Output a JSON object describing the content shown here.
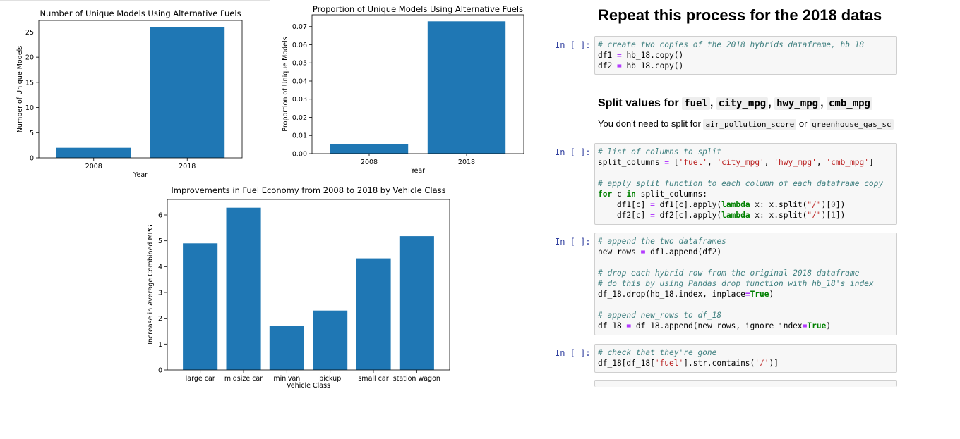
{
  "chart_data": [
    {
      "type": "bar",
      "title": "Number of Unique Models Using Alternative Fuels",
      "xlabel": "Year",
      "ylabel": "Number of Unique Models",
      "categories": [
        "2008",
        "2018"
      ],
      "values": [
        2,
        26
      ],
      "ylim": [
        0,
        27.3
      ],
      "yticks": [
        0,
        5,
        10,
        15,
        20,
        25
      ],
      "ytick_labels": [
        "0",
        "5",
        "10",
        "15",
        "20",
        "25"
      ],
      "bar_color": "#1f77b4",
      "grid": false
    },
    {
      "type": "bar",
      "title": "Proportion of Unique Models Using Alternative Fuels",
      "xlabel": "Year",
      "ylabel": "Proportion of Unique Models",
      "categories": [
        "2008",
        "2018"
      ],
      "values": [
        0.0054,
        0.0729
      ],
      "ylim": [
        0,
        0.0765
      ],
      "yticks": [
        0,
        0.01,
        0.02,
        0.03,
        0.04,
        0.05,
        0.06,
        0.07
      ],
      "ytick_labels": [
        "0.00",
        "0.01",
        "0.02",
        "0.03",
        "0.04",
        "0.05",
        "0.06",
        "0.07"
      ],
      "bar_color": "#1f77b4",
      "grid": false
    },
    {
      "type": "bar",
      "title": "Improvements in Fuel Economy from 2008 to 2018 by Vehicle Class",
      "xlabel": "Vehicle Class",
      "ylabel": "Increase in Average Combined MPG",
      "categories": [
        "large car",
        "midsize car",
        "minivan",
        "pickup",
        "small car",
        "station wagon"
      ],
      "values": [
        4.9,
        6.28,
        1.7,
        2.3,
        4.32,
        5.18
      ],
      "ylim": [
        0,
        6.6
      ],
      "yticks": [
        0,
        1,
        2,
        3,
        4,
        5,
        6
      ],
      "ytick_labels": [
        "0",
        "1",
        "2",
        "3",
        "4",
        "5",
        "6"
      ],
      "bar_color": "#1f77b4",
      "grid": false
    }
  ],
  "notebook": {
    "heading": "Repeat this process for the 2018 datas",
    "subheading": {
      "prefix": "Split values for ",
      "codes": [
        "fuel",
        "city_mpg",
        "hwy_mpg",
        "cmb_mpg"
      ],
      "sep": ", "
    },
    "note": {
      "prefix": "You don't need to split for ",
      "code1": "air_pollution_score",
      "middle": " or ",
      "code2": "greenhouse_gas_sc"
    },
    "cells": [
      {
        "prompt": "In [ ]:",
        "lines": [
          [
            [
              "c",
              "# create two copies of the 2018 hybrids dataframe, hb_18"
            ]
          ],
          [
            [
              "t",
              "df1 "
            ],
            [
              "o",
              "="
            ],
            [
              "t",
              " hb_18.copy()"
            ]
          ],
          [
            [
              "t",
              "df2 "
            ],
            [
              "o",
              "="
            ],
            [
              "t",
              " hb_18.copy()"
            ]
          ]
        ]
      },
      {
        "prompt": "In [ ]:",
        "lines": [
          [
            [
              "c",
              "# list of columns to split"
            ]
          ],
          [
            [
              "t",
              "split_columns "
            ],
            [
              "o",
              "="
            ],
            [
              "t",
              " ["
            ],
            [
              "s",
              "'fuel'"
            ],
            [
              "t",
              ", "
            ],
            [
              "s",
              "'city_mpg'"
            ],
            [
              "t",
              ", "
            ],
            [
              "s",
              "'hwy_mpg'"
            ],
            [
              "t",
              ", "
            ],
            [
              "s",
              "'cmb_mpg'"
            ],
            [
              "t",
              "]"
            ]
          ],
          [],
          [
            [
              "c",
              "# apply split function to each column of each dataframe copy"
            ]
          ],
          [
            [
              "k",
              "for"
            ],
            [
              "t",
              " c "
            ],
            [
              "k",
              "in"
            ],
            [
              "t",
              " split_columns:"
            ]
          ],
          [
            [
              "t",
              "    df1[c] "
            ],
            [
              "o",
              "="
            ],
            [
              "t",
              " df1[c].apply("
            ],
            [
              "k",
              "lambda"
            ],
            [
              "t",
              " x: x.split("
            ],
            [
              "s",
              "\"/\""
            ],
            [
              "t",
              ")["
            ],
            [
              "n",
              "0"
            ],
            [
              "t",
              "])"
            ]
          ],
          [
            [
              "t",
              "    df2[c] "
            ],
            [
              "o",
              "="
            ],
            [
              "t",
              " df2[c].apply("
            ],
            [
              "k",
              "lambda"
            ],
            [
              "t",
              " x: x.split("
            ],
            [
              "s",
              "\"/\""
            ],
            [
              "t",
              ")["
            ],
            [
              "n",
              "1"
            ],
            [
              "t",
              "])"
            ]
          ]
        ]
      },
      {
        "prompt": "In [ ]:",
        "lines": [
          [
            [
              "c",
              "# append the two dataframes"
            ]
          ],
          [
            [
              "t",
              "new_rows "
            ],
            [
              "o",
              "="
            ],
            [
              "t",
              " df1.append(df2)"
            ]
          ],
          [],
          [
            [
              "c",
              "# drop each hybrid row from the original 2018 dataframe"
            ]
          ],
          [
            [
              "c",
              "# do this by using Pandas drop function with hb_18's index"
            ]
          ],
          [
            [
              "t",
              "df_18.drop(hb_18.index, inplace"
            ],
            [
              "o",
              "="
            ],
            [
              "k",
              "True"
            ],
            [
              "t",
              ")"
            ]
          ],
          [],
          [
            [
              "c",
              "# append new_rows to df_18"
            ]
          ],
          [
            [
              "t",
              "df_18 "
            ],
            [
              "o",
              "="
            ],
            [
              "t",
              " df_18.append(new_rows, ignore_index"
            ],
            [
              "o",
              "="
            ],
            [
              "k",
              "True"
            ],
            [
              "t",
              ")"
            ]
          ]
        ]
      },
      {
        "prompt": "In [ ]:",
        "lines": [
          [
            [
              "c",
              "# check that they're gone"
            ]
          ],
          [
            [
              "t",
              "df_18[df_18["
            ],
            [
              "s",
              "'fuel'"
            ],
            [
              "t",
              "].str.contains("
            ],
            [
              "s",
              "'/'"
            ],
            [
              "t",
              ")]"
            ]
          ]
        ]
      }
    ]
  }
}
